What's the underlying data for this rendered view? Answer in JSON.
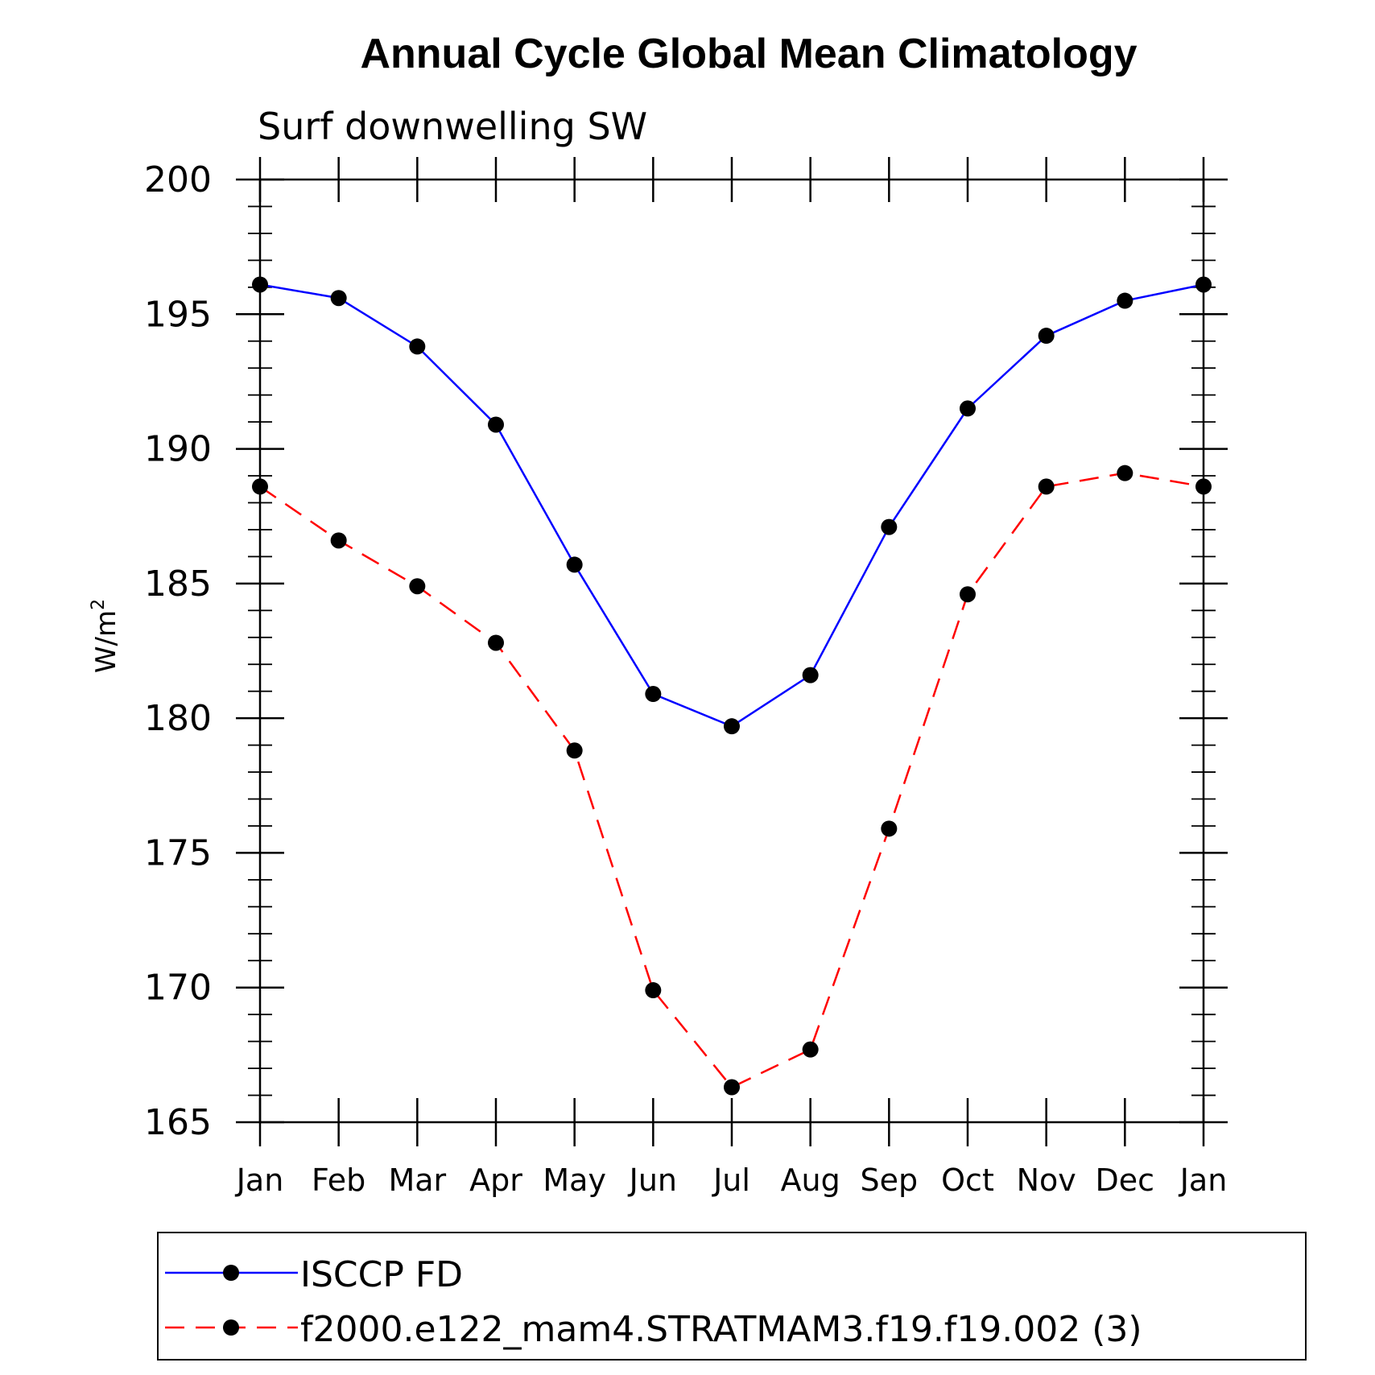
{
  "chart_data": {
    "type": "line",
    "title": "Annual Cycle Global Mean Climatology",
    "subtitle": "Surf downwelling SW",
    "xlabel": "",
    "ylabel": "W/m",
    "ylabel_superscript": "2",
    "categories": [
      "Jan",
      "Feb",
      "Mar",
      "Apr",
      "May",
      "Jun",
      "Jul",
      "Aug",
      "Sep",
      "Oct",
      "Nov",
      "Dec",
      "Jan"
    ],
    "ylim": [
      165,
      200
    ],
    "yticks": [
      165,
      170,
      175,
      180,
      185,
      190,
      195,
      200
    ],
    "ytick_labels": [
      "165",
      "170",
      "175",
      "180",
      "185",
      "190",
      "195",
      "200"
    ],
    "y_minor_step": 1,
    "grid": false,
    "legend_position": "bottom",
    "series": [
      {
        "name": "ISCCP FD",
        "color": "#0000ff",
        "dash": "solid",
        "marker": "filled-circle",
        "values": [
          196.1,
          195.6,
          193.8,
          190.9,
          185.7,
          180.9,
          179.7,
          181.6,
          187.1,
          191.5,
          194.2,
          195.5,
          196.1
        ]
      },
      {
        "name": "f2000.e122_mam4.STRATMAM3.f19.f19.002 (3)",
        "color": "#ff0000",
        "dash": "dashed",
        "marker": "filled-circle",
        "values": [
          188.6,
          186.6,
          184.9,
          182.8,
          178.8,
          169.9,
          166.3,
          167.7,
          175.9,
          184.6,
          188.6,
          189.1,
          188.6
        ]
      }
    ]
  }
}
